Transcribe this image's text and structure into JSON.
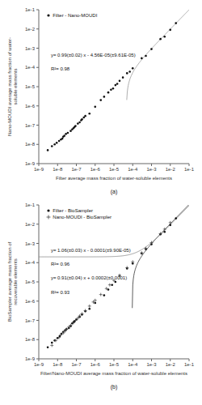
{
  "chart_data": [
    {
      "type": "scatter",
      "title": "(a)",
      "xlabel": "Filter average mass fraction of water-soluble elements",
      "ylabel": "Nano-MOUDI average mass fraction of water-soluble elements",
      "log": true,
      "grid": false,
      "legend": "upper left",
      "xlim": [
        1e-09,
        0.1
      ],
      "ylim": [
        1e-09,
        0.1
      ],
      "xticks": [
        {
          "value": 1e-09,
          "label": "1e-9"
        },
        {
          "value": 1e-08,
          "label": "1e-8"
        },
        {
          "value": 1e-07,
          "label": "1e-7"
        },
        {
          "value": 1e-06,
          "label": "1e-6"
        },
        {
          "value": 1e-05,
          "label": "1e-5"
        },
        {
          "value": 0.0001,
          "label": "1e-4"
        },
        {
          "value": 0.001,
          "label": "1e-3"
        },
        {
          "value": 0.01,
          "label": "1e-2"
        },
        {
          "value": 0.1,
          "label": "1e-1"
        }
      ],
      "yticks": [
        {
          "value": 1e-09,
          "label": "1e-9"
        },
        {
          "value": 1e-08,
          "label": "1e-8"
        },
        {
          "value": 1e-07,
          "label": "1e-7"
        },
        {
          "value": 1e-06,
          "label": "1e-6"
        },
        {
          "value": 1e-05,
          "label": "1e-5"
        },
        {
          "value": 0.0001,
          "label": "1e-4"
        },
        {
          "value": 0.001,
          "label": "1e-3"
        },
        {
          "value": 0.01,
          "label": "1e-2"
        },
        {
          "value": 0.1,
          "label": "1e-1"
        }
      ],
      "annotations": [
        "y= 0.99(±0.02) x - 4.56E-05(±9.61E-05)",
        "R²= 0.98"
      ],
      "fits": [
        {
          "slope": 0.99,
          "intercept": -4.56e-05,
          "color": "#999999"
        }
      ],
      "series": [
        {
          "name": "Filter - Nano-MOUDI",
          "color": "#111111",
          "marker": "circle",
          "x": [
            3e-09,
            5e-09,
            7e-09,
            9e-09,
            1.2e-08,
            1.5e-08,
            1.8e-08,
            2e-08,
            2.3e-08,
            2.8e-08,
            3.5e-08,
            5e-08,
            6e-08,
            7e-08,
            8e-08,
            9e-08,
            1.2e-07,
            1.5e-07,
            1.8e-07,
            2e-07,
            2.5e-07,
            3e-07,
            5e-07,
            1e-06,
            2e-06,
            3e-06,
            5e-06,
            7e-06,
            9e-06,
            1.2e-05,
            1.5e-05,
            2e-05,
            3e-05,
            5e-05,
            7e-05,
            0.0001,
            0.0003,
            0.0005,
            0.001,
            0.003,
            0.005,
            0.01,
            0.02
          ],
          "values": [
            5e-09,
            8e-09,
            1e-08,
            1.2e-08,
            1.5e-08,
            1.8e-08,
            2e-08,
            2.5e-08,
            2.8e-08,
            3.5e-08,
            4e-08,
            5e-08,
            6e-08,
            7e-08,
            8e-08,
            9e-08,
            1.2e-07,
            1.4e-07,
            1.8e-07,
            2e-07,
            2.5e-07,
            3e-07,
            4e-07,
            9e-07,
            2e-06,
            3e-06,
            5e-06,
            7e-06,
            8e-06,
            1.2e-05,
            1.4e-05,
            2e-05,
            3e-05,
            5e-05,
            6e-05,
            9e-05,
            0.0003,
            0.0004,
            0.0009,
            0.003,
            0.004,
            0.009,
            0.02
          ]
        }
      ]
    },
    {
      "type": "scatter",
      "title": "(b)",
      "xlabel": "Filter/Nano-MOUDI average mass fraction of water-soluble elements",
      "ylabel": "BioSampler average mass fraction of recoverable elements",
      "log": true,
      "grid": false,
      "legend": "upper left",
      "xlim": [
        1e-09,
        0.1
      ],
      "ylim": [
        1e-09,
        0.1
      ],
      "xticks": [
        {
          "value": 1e-09,
          "label": "1e-9"
        },
        {
          "value": 1e-08,
          "label": "1e-8"
        },
        {
          "value": 1e-07,
          "label": "1e-7"
        },
        {
          "value": 1e-06,
          "label": "1e-6"
        },
        {
          "value": 1e-05,
          "label": "1e-5"
        },
        {
          "value": 0.0001,
          "label": "1e-4"
        },
        {
          "value": 0.001,
          "label": "1e-3"
        },
        {
          "value": 0.01,
          "label": "1e-2"
        },
        {
          "value": 0.1,
          "label": "1e-1"
        }
      ],
      "yticks": [
        {
          "value": 1e-09,
          "label": "1e-9"
        },
        {
          "value": 1e-08,
          "label": "1e-8"
        },
        {
          "value": 1e-07,
          "label": "1e-7"
        },
        {
          "value": 1e-06,
          "label": "1e-6"
        },
        {
          "value": 1e-05,
          "label": "1e-5"
        },
        {
          "value": 0.0001,
          "label": "1e-4"
        },
        {
          "value": 0.001,
          "label": "1e-3"
        },
        {
          "value": 0.01,
          "label": "1e-2"
        },
        {
          "value": 0.1,
          "label": "1e-1"
        }
      ],
      "annotations": [
        "y= 1.06(±0.03) x - 0.0001(±9.90E-05)",
        "R²= 0.96",
        "y= 0.91(±0.04) x + 0.0002(±0.0001)",
        "R²= 0.93"
      ],
      "fits": [
        {
          "slope": 1.06,
          "intercept": -0.0001,
          "color": "#333333"
        },
        {
          "slope": 0.91,
          "intercept": 0.0002,
          "color": "#888888"
        }
      ],
      "series": [
        {
          "name": "Filter - BioSampler",
          "color": "#111111",
          "marker": "circle",
          "x": [
            3e-09,
            5e-09,
            7e-09,
            1e-08,
            1.3e-08,
            1.6e-08,
            2e-08,
            2.5e-08,
            3e-08,
            4e-08,
            5e-08,
            6e-08,
            7e-08,
            8e-08,
            1e-07,
            1.5e-07,
            2e-07,
            3e-07,
            5e-07,
            1e-06,
            3e-06,
            5e-06,
            8e-06,
            1.2e-05,
            2e-05,
            5e-05,
            0.0001,
            0.0003,
            0.0005,
            0.001,
            0.003,
            0.005,
            0.01,
            0.02
          ],
          "values": [
            4e-09,
            7e-09,
            9e-09,
            1.2e-08,
            1.5e-08,
            2e-08,
            2.5e-08,
            3e-08,
            3.5e-08,
            4e-08,
            5e-08,
            7e-08,
            8e-08,
            9e-08,
            1.1e-07,
            1.5e-07,
            2e-07,
            3e-07,
            4e-07,
            8e-07,
            2e-06,
            4e-06,
            7e-06,
            1e-05,
            2e-05,
            5e-05,
            9e-05,
            0.0003,
            0.0005,
            0.0009,
            0.003,
            0.004,
            0.009,
            0.02
          ]
        },
        {
          "name": "Nano-MOUDI - BioSampler",
          "color": "#444444",
          "marker": "plus",
          "x": [
            5e-09,
            8e-09,
            1.2e-08,
            1.5e-08,
            2e-08,
            2.5e-08,
            3e-08,
            4e-08,
            5e-08,
            7e-08,
            9e-08,
            1.2e-07,
            1.5e-07,
            2e-07,
            3e-07,
            5e-07,
            8e-07,
            1e-06,
            2e-06,
            4e-06,
            6e-06,
            1e-05,
            2e-05,
            5e-05,
            0.0001,
            0.0003,
            0.0005,
            0.001,
            0.003,
            0.005,
            0.01
          ],
          "values": [
            5e-09,
            9e-09,
            1.3e-08,
            1.8e-08,
            2.2e-08,
            2.8e-08,
            3.5e-08,
            4.5e-08,
            5.5e-08,
            7.5e-08,
            1e-07,
            1.3e-07,
            1.7e-07,
            2.2e-07,
            3.2e-07,
            5.5e-07,
            9e-07,
            1.1e-06,
            2.2e-06,
            4.5e-06,
            7e-06,
            1.2e-05,
            2.2e-05,
            5.5e-05,
            0.00011,
            0.00032,
            0.00055,
            0.0011,
            0.0032,
            0.0055,
            0.012
          ]
        }
      ]
    }
  ]
}
